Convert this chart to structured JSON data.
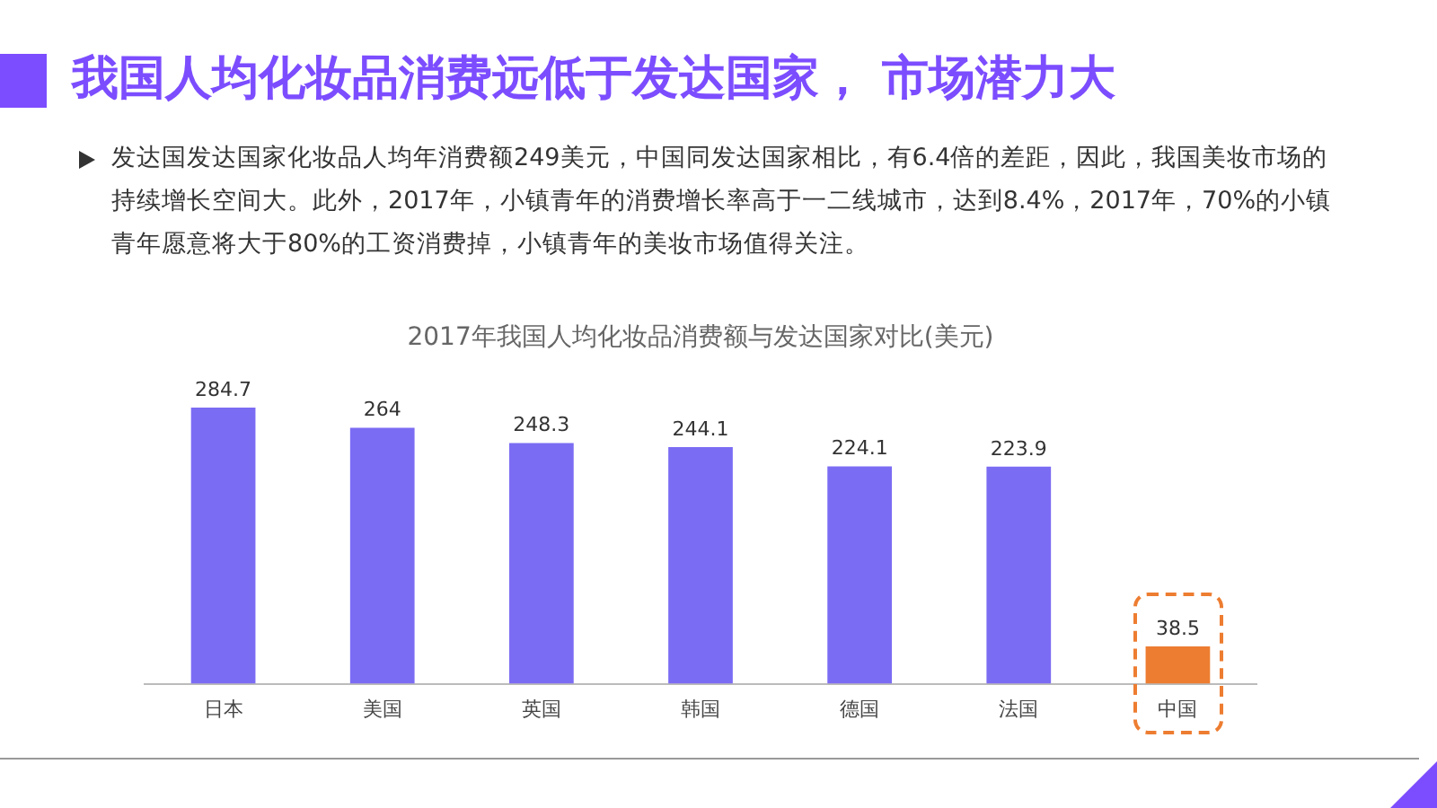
{
  "chart_data": {
    "type": "bar",
    "title": "2017年我国人均化妆品消费额与发达国家对比(美元)",
    "annotations": [
      "我国人均化妆品消费远低于发达国家， 市场潜力大",
      "发达国发达国家化妆品人均年消费额249美元，中国同发达国家相比，有6.4倍的差距，因此，我国美妆市场的持续增长空间大。此外，2017年，小镇青年的消费增长率高于一二线城市，达到8.4%，2017年，70%的小镇青年愿意将大于80%的工资消费掉，小镇青年的美妆市场值得关注。"
    ],
    "categories": [
      "日本",
      "美国",
      "英国",
      "韩国",
      "德国",
      "法国",
      "中国"
    ],
    "values": [
      284.7,
      264,
      248.3,
      244.1,
      224.1,
      223.9,
      38.5
    ],
    "colors": [
      "#7b6cf4",
      "#7b6cf4",
      "#7b6cf4",
      "#7b6cf4",
      "#7b6cf4",
      "#7b6cf4",
      "#ed7d31"
    ],
    "data_labels": true,
    "grid": false,
    "legend": false
  }
}
